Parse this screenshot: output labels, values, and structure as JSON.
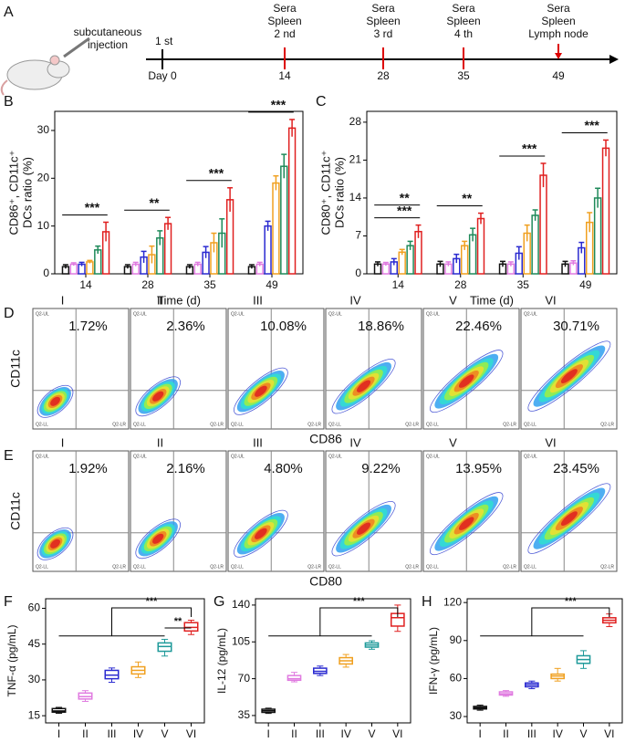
{
  "panel_a": {
    "label": "A",
    "injection_label": [
      "subcutaneous",
      "injection"
    ],
    "events": [
      {
        "above": [
          "1 st"
        ],
        "below": "Day 0"
      },
      {
        "above": [
          "Sera",
          "Spleen",
          "2 nd"
        ],
        "below": "14"
      },
      {
        "above": [
          "Sera",
          "Spleen",
          "3 rd"
        ],
        "below": "28"
      },
      {
        "above": [
          "Sera",
          "Spleen",
          "4 th"
        ],
        "below": "35"
      },
      {
        "above": [
          "Sera",
          "Spleen",
          "Lymph node"
        ],
        "below": "49"
      }
    ]
  },
  "chart_data": [
    {
      "panel": "B",
      "type": "bar",
      "xlabel": "Time (d)",
      "ylabel": [
        "CD86⁺, CD11c⁺",
        "DCs ratio (%)"
      ],
      "categories": [
        "14",
        "28",
        "35",
        "49"
      ],
      "series": [
        {
          "color": "#111111",
          "values": [
            1.5,
            1.5,
            1.5,
            1.5
          ],
          "errors": [
            0.4,
            0.4,
            0.4,
            0.4
          ]
        },
        {
          "color": "#e07be0",
          "values": [
            2.0,
            2.0,
            2.0,
            2.0
          ],
          "errors": [
            0.3,
            0.4,
            0.4,
            0.4
          ]
        },
        {
          "color": "#2a2ad0",
          "values": [
            2.0,
            3.5,
            4.5,
            10.0
          ],
          "errors": [
            0.4,
            1.2,
            1.2,
            1.0
          ]
        },
        {
          "color": "#f0a020",
          "values": [
            2.5,
            4.0,
            6.5,
            19.0
          ],
          "errors": [
            0.3,
            1.8,
            2.0,
            1.5
          ]
        },
        {
          "color": "#1f8a5a",
          "values": [
            5.0,
            7.5,
            8.5,
            22.5
          ],
          "errors": [
            0.8,
            1.5,
            3.0,
            2.5
          ]
        },
        {
          "color": "#e02020",
          "values": [
            8.8,
            10.5,
            15.5,
            30.5
          ],
          "errors": [
            2.0,
            1.3,
            2.5,
            1.8
          ]
        }
      ],
      "ylim": [
        0,
        34
      ],
      "yticks": [
        0,
        10,
        20,
        30
      ],
      "annotations": [
        "***",
        "**",
        "***",
        "***"
      ]
    },
    {
      "panel": "C",
      "type": "bar",
      "xlabel": "Time (d)",
      "ylabel": [
        "CD80⁺, CD11c⁺",
        "DCs ratio (%)"
      ],
      "categories": [
        "14",
        "28",
        "35",
        "49"
      ],
      "series": [
        {
          "color": "#111111",
          "values": [
            1.8,
            1.8,
            1.8,
            1.8
          ],
          "errors": [
            0.4,
            0.5,
            0.5,
            0.5
          ]
        },
        {
          "color": "#e07be0",
          "values": [
            1.8,
            1.8,
            1.8,
            2.0
          ],
          "errors": [
            0.3,
            0.4,
            0.4,
            0.4
          ]
        },
        {
          "color": "#2a2ad0",
          "values": [
            2.2,
            2.8,
            3.8,
            4.8
          ],
          "errors": [
            0.6,
            0.8,
            1.2,
            1.0
          ]
        },
        {
          "color": "#f0a020",
          "values": [
            4.0,
            5.2,
            7.5,
            9.5
          ],
          "errors": [
            0.5,
            0.8,
            1.5,
            1.8
          ]
        },
        {
          "color": "#1f8a5a",
          "values": [
            5.2,
            7.2,
            10.8,
            14.0
          ],
          "errors": [
            0.8,
            1.2,
            1.0,
            1.8
          ]
        },
        {
          "color": "#e02020",
          "values": [
            7.8,
            10.2,
            18.2,
            23.2
          ],
          "errors": [
            1.2,
            1.0,
            2.2,
            1.5
          ]
        }
      ],
      "ylim": [
        0,
        30
      ],
      "yticks": [
        0,
        7,
        14,
        21,
        28
      ],
      "annotations": [
        "***",
        "**",
        "**",
        "***",
        "***"
      ]
    },
    {
      "panel": "F",
      "type": "box",
      "ylabel": "TNF-α (pg/mL)",
      "categories": [
        "I",
        "II",
        "III",
        "IV",
        "V",
        "VI"
      ],
      "colors": [
        "#111111",
        "#e07be0",
        "#2a2ad0",
        "#f0a020",
        "#1f9a9a",
        "#e02020"
      ],
      "min": [
        16,
        21,
        29,
        31,
        40,
        49
      ],
      "q1": [
        16.5,
        22,
        30.5,
        32.5,
        42,
        50.5
      ],
      "median": [
        17,
        23,
        32,
        34,
        44,
        52
      ],
      "q3": [
        18,
        24.5,
        34,
        35.5,
        45.5,
        54
      ],
      "max": [
        18.5,
        25.5,
        35,
        37.5,
        47,
        55
      ],
      "ylim": [
        12,
        64
      ],
      "yticks": [
        15,
        30,
        45,
        60
      ],
      "annotations": [
        "***",
        "**"
      ]
    },
    {
      "panel": "G",
      "type": "box",
      "ylabel": "IL-12 (pg/mL)",
      "categories": [
        "I",
        "II",
        "III",
        "IV",
        "V",
        "VI"
      ],
      "colors": [
        "#111111",
        "#e07be0",
        "#2a2ad0",
        "#f0a020",
        "#1f9a9a",
        "#e02020"
      ],
      "min": [
        37,
        67,
        73,
        81,
        98,
        115
      ],
      "q1": [
        38,
        68.5,
        75,
        84,
        100,
        120
      ],
      "median": [
        39.5,
        70,
        77,
        87,
        102,
        128
      ],
      "q3": [
        41,
        73,
        80,
        90,
        104,
        132
      ],
      "max": [
        42,
        76,
        82,
        93,
        106,
        140
      ],
      "ylim": [
        28,
        146
      ],
      "yticks": [
        35,
        70,
        105,
        140
      ],
      "annotations": [
        "***"
      ]
    },
    {
      "panel": "H",
      "type": "box",
      "ylabel": "IFN-γ (pg/mL)",
      "categories": [
        "I",
        "II",
        "III",
        "IV",
        "V",
        "VI"
      ],
      "colors": [
        "#111111",
        "#e07be0",
        "#2a2ad0",
        "#f0a020",
        "#1f9a9a",
        "#e02020"
      ],
      "min": [
        35,
        46,
        52,
        58,
        68,
        101
      ],
      "q1": [
        36,
        47,
        53.5,
        60,
        72,
        104
      ],
      "median": [
        37,
        48,
        55,
        62,
        75,
        106
      ],
      "q3": [
        38,
        49.5,
        56.5,
        63.5,
        78,
        108
      ],
      "max": [
        39,
        50.5,
        58,
        68,
        82,
        111
      ],
      "ylim": [
        25,
        123
      ],
      "yticks": [
        30,
        60,
        90,
        120
      ],
      "annotations": [
        "***"
      ]
    }
  ],
  "flow": [
    {
      "panel": "D",
      "xlabel": "CD86",
      "ylabel": "CD11c",
      "groups": [
        "I",
        "II",
        "III",
        "IV",
        "V",
        "VI"
      ],
      "percents": [
        "1.72%",
        "2.36%",
        "10.08%",
        "18.86%",
        "22.46%",
        "30.71%"
      ]
    },
    {
      "panel": "E",
      "xlabel": "CD80",
      "ylabel": "CD11c",
      "groups": [
        "I",
        "II",
        "III",
        "IV",
        "V",
        "VI"
      ],
      "percents": [
        "1.92%",
        "2.16%",
        "4.80%",
        "9.22%",
        "13.95%",
        "23.45%"
      ]
    }
  ],
  "quadrant_labels": [
    "Q2-UL",
    "Q2-LL",
    "Q2-LR"
  ]
}
